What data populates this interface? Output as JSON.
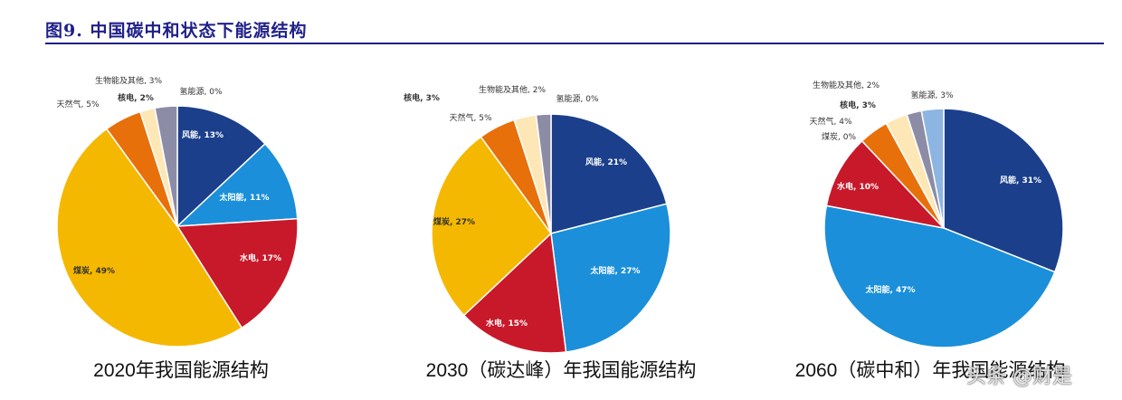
{
  "figure_title": "图9. 中国碳中和状态下能源结构",
  "watermark": "头条 @财是",
  "colors": {
    "title": "#1f1f8a",
    "风能": "#1b3f8b",
    "太阳能": "#1b8fd9",
    "水电": "#c8192a",
    "煤炭": "#f5b800",
    "天然气": "#e8700a",
    "核电": "#fde7b6",
    "生物能及其他": "#8c8ca6",
    "氢能源": "#8db5e2"
  },
  "chart_data": [
    {
      "type": "pie",
      "title": "2020年我国能源结构",
      "slices": [
        {
          "label": "风能",
          "value": 13,
          "text": "风能, 13%"
        },
        {
          "label": "太阳能",
          "value": 11,
          "text": "太阳能, 11%"
        },
        {
          "label": "水电",
          "value": 17,
          "text": "水电, 17%"
        },
        {
          "label": "煤炭",
          "value": 49,
          "text": "煤炭, 49%"
        },
        {
          "label": "天然气",
          "value": 5,
          "text": "天然气, 5%"
        },
        {
          "label": "核电",
          "value": 2,
          "text": "核电, 2%"
        },
        {
          "label": "生物能及其他",
          "value": 3,
          "text": "生物能及其他, 3%"
        },
        {
          "label": "氢能源",
          "value": 0,
          "text": "氢能源, 0%"
        }
      ]
    },
    {
      "type": "pie",
      "title": "2030（碳达峰）年我国能源结构",
      "slices": [
        {
          "label": "风能",
          "value": 21,
          "text": "风能, 21%"
        },
        {
          "label": "太阳能",
          "value": 27,
          "text": "太阳能, 27%"
        },
        {
          "label": "水电",
          "value": 15,
          "text": "水电, 15%"
        },
        {
          "label": "煤炭",
          "value": 27,
          "text": "煤炭, 27%"
        },
        {
          "label": "天然气",
          "value": 5,
          "text": "天然气, 5%"
        },
        {
          "label": "核电",
          "value": 3,
          "text": "核电, 3%"
        },
        {
          "label": "生物能及其他",
          "value": 2,
          "text": "生物能及其他, 2%"
        },
        {
          "label": "氢能源",
          "value": 0,
          "text": "氢能源, 0%"
        }
      ]
    },
    {
      "type": "pie",
      "title": "2060（碳中和）年我国能源结构",
      "slices": [
        {
          "label": "风能",
          "value": 31,
          "text": "风能, 31%"
        },
        {
          "label": "太阳能",
          "value": 47,
          "text": "太阳能, 47%"
        },
        {
          "label": "水电",
          "value": 10,
          "text": "水电, 10%"
        },
        {
          "label": "煤炭",
          "value": 0,
          "text": "煤炭, 0%"
        },
        {
          "label": "天然气",
          "value": 4,
          "text": "天然气, 4%"
        },
        {
          "label": "核电",
          "value": 3,
          "text": "核电, 3%"
        },
        {
          "label": "生物能及其他",
          "value": 2,
          "text": "生物能及其他, 2%"
        },
        {
          "label": "氢能源",
          "value": 3,
          "text": "氢能源, 3%"
        }
      ]
    }
  ]
}
